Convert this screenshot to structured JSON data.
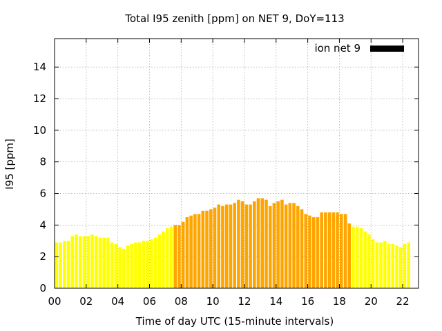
{
  "chart_data": {
    "type": "bar",
    "title": "Total I95 zenith [ppm] on NET 9, DoY=113",
    "xlabel": "Time of day UTC (15-minute intervals)",
    "ylabel": "I95 [ppm]",
    "xlim": [
      0,
      23
    ],
    "ylim": [
      0,
      15.8
    ],
    "x_ticks": [
      0,
      2,
      4,
      6,
      8,
      10,
      12,
      14,
      16,
      18,
      20,
      22
    ],
    "x_tick_labels": [
      "00",
      "02",
      "04",
      "06",
      "08",
      "10",
      "12",
      "14",
      "16",
      "18",
      "20",
      "22"
    ],
    "y_ticks": [
      0,
      2,
      4,
      6,
      8,
      10,
      12,
      14
    ],
    "y_tick_labels": [
      "0",
      "2",
      "4",
      "6",
      "8",
      "10",
      "12",
      "14"
    ],
    "grid": true,
    "legend": {
      "label": "ion net 9",
      "position": "top-right",
      "color": "#000000"
    },
    "colors": {
      "low": "#ffff00",
      "high": "#ffa500"
    },
    "bar_interval_hours": 0.25,
    "series": [
      {
        "values": [
          2.9,
          2.9,
          3.0,
          3.0,
          3.3,
          3.4,
          3.3,
          3.3,
          3.3,
          3.4,
          3.3,
          3.2,
          3.2,
          3.2,
          2.9,
          2.8,
          2.6,
          2.5,
          2.7,
          2.8,
          2.9,
          2.9,
          3.0,
          3.0,
          3.1,
          3.2,
          3.4,
          3.6,
          3.8,
          3.9,
          4.0,
          4.0,
          4.2,
          4.5,
          4.6,
          4.7,
          4.7,
          4.9,
          4.9,
          5.0,
          5.1,
          5.3,
          5.2,
          5.3,
          5.3,
          5.4,
          5.6,
          5.5,
          5.3,
          5.3,
          5.5,
          5.7,
          5.7,
          5.6,
          5.2,
          5.4,
          5.5,
          5.6,
          5.3,
          5.4,
          5.4,
          5.2,
          5.0,
          4.7,
          4.6,
          4.5,
          4.5,
          4.8,
          4.8,
          4.8,
          4.8,
          4.8,
          4.7,
          4.7,
          4.1,
          3.9,
          3.9,
          3.8,
          3.6,
          3.4,
          3.1,
          2.9,
          2.9,
          3.0,
          2.8,
          2.8,
          2.7,
          2.6,
          2.8,
          2.9
        ],
        "highlight": [
          false,
          false,
          false,
          false,
          false,
          false,
          false,
          false,
          false,
          false,
          false,
          false,
          false,
          false,
          false,
          false,
          false,
          false,
          false,
          false,
          false,
          false,
          false,
          false,
          false,
          false,
          false,
          false,
          false,
          false,
          true,
          true,
          true,
          true,
          true,
          true,
          true,
          true,
          true,
          true,
          true,
          true,
          true,
          true,
          true,
          true,
          true,
          true,
          true,
          true,
          true,
          true,
          true,
          true,
          true,
          true,
          true,
          true,
          true,
          true,
          true,
          true,
          true,
          true,
          true,
          true,
          true,
          true,
          true,
          true,
          true,
          true,
          true,
          true,
          true,
          false,
          false,
          false,
          false,
          false,
          false,
          false,
          false,
          false,
          false,
          false,
          false,
          false,
          false,
          false
        ]
      }
    ]
  }
}
